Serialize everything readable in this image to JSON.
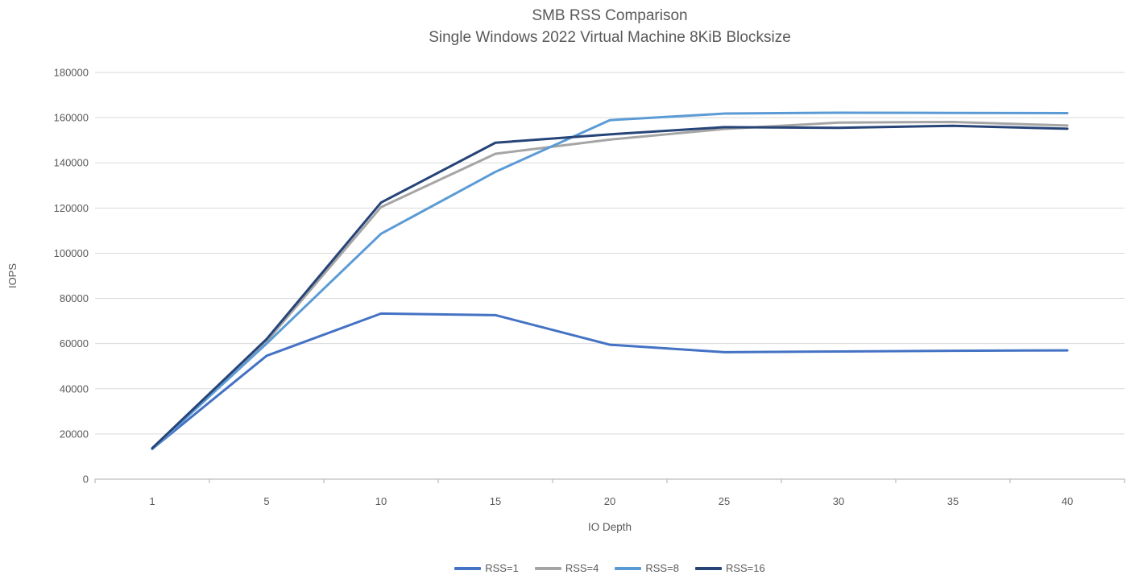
{
  "title": {
    "line1": "SMB RSS Comparison",
    "line2": "Single Windows 2022 Virtual Machine 8KiB Blocksize"
  },
  "colors": {
    "title_text": "#595959",
    "axis_text": "#595959",
    "gridline": "#D9D9D9",
    "axis_line": "#BFBFBF",
    "background": "#FFFFFF"
  },
  "chart_data": {
    "type": "line",
    "title": "SMB RSS Comparison",
    "subtitle": "Single Windows 2022 Virtual Machine 8KiB Blocksize",
    "xlabel": "IO Depth",
    "ylabel": "IOPS",
    "categories": [
      1,
      5,
      10,
      15,
      20,
      25,
      30,
      35,
      40
    ],
    "ylim": [
      0,
      180000
    ],
    "ytick_step": 20000,
    "ytick_labels": [
      "0",
      "20000",
      "40000",
      "60000",
      "80000",
      "100000",
      "120000",
      "140000",
      "160000",
      "180000"
    ],
    "grid": true,
    "legend_position": "bottom",
    "series": [
      {
        "name": "RSS=1",
        "color": "#4472C4",
        "values": [
          13400,
          54600,
          73300,
          72600,
          59500,
          56200,
          56500,
          56800,
          57000
        ]
      },
      {
        "name": "RSS=4",
        "color": "#A5A5A5",
        "values": [
          13600,
          61000,
          120400,
          144000,
          150300,
          155000,
          157800,
          158100,
          156500
        ]
      },
      {
        "name": "RSS=8",
        "color": "#5B9BD5",
        "values": [
          13300,
          60000,
          108600,
          136000,
          158900,
          161800,
          162200,
          162100,
          162000
        ]
      },
      {
        "name": "RSS=16",
        "color": "#264478",
        "values": [
          13700,
          62000,
          122400,
          148900,
          152600,
          155800,
          155500,
          156400,
          155100
        ]
      }
    ]
  }
}
